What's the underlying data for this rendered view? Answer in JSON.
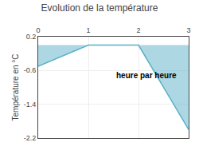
{
  "chart_data": {
    "type": "area",
    "title": "Evolution de la température",
    "xlabel": "heure par heure",
    "ylabel": "Température en °C",
    "x": [
      0,
      1,
      2,
      3
    ],
    "values": [
      -0.5,
      0.0,
      0.0,
      -2.0
    ],
    "color": "#5ab0c8",
    "xlim": [
      0,
      3
    ],
    "ylim": [
      -2.2,
      0.2
    ],
    "xticks": [
      0,
      1,
      2,
      3
    ],
    "yticks": [
      -2.2,
      -1.4,
      -0.6,
      0.2
    ],
    "grid": true
  }
}
